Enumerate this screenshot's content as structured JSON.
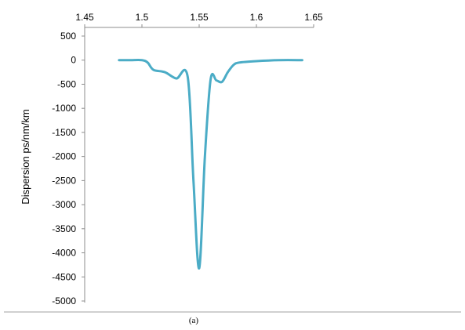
{
  "chart_data": {
    "type": "line",
    "title": "",
    "xlabel": "",
    "ylabel": "Dispersion ps/nm/km",
    "xlim": [
      1.45,
      1.65
    ],
    "ylim": [
      -5000,
      500
    ],
    "x_ticks": [
      1.45,
      1.5,
      1.55,
      1.6,
      1.65
    ],
    "x_tick_labels": [
      "1.45",
      "1.5",
      "1.55",
      "1.6",
      "1.65"
    ],
    "y_ticks": [
      500,
      0,
      -500,
      -1000,
      -1500,
      -2000,
      -2500,
      -3000,
      -3500,
      -4000,
      -4500,
      -5000
    ],
    "y_tick_labels": [
      "500",
      "0",
      "-500",
      "-1000",
      "-1500",
      "-2000",
      "-2500",
      "-3000",
      "-3500",
      "-4000",
      "-4500",
      "-5000"
    ],
    "x_axis_position": "top",
    "grid": false,
    "legend": false,
    "series": [
      {
        "color": "#4bacc6",
        "x": [
          1.48,
          1.49,
          1.5,
          1.505,
          1.51,
          1.52,
          1.53,
          1.54,
          1.545,
          1.55,
          1.555,
          1.56,
          1.565,
          1.57,
          1.575,
          1.58,
          1.585,
          1.6,
          1.62,
          1.64
        ],
        "y": [
          0,
          0,
          0,
          -50,
          -200,
          -250,
          -380,
          -350,
          -2500,
          -4320,
          -2000,
          -400,
          -420,
          -450,
          -250,
          -100,
          -50,
          -20,
          0,
          0
        ]
      }
    ]
  },
  "caption": "(a)"
}
